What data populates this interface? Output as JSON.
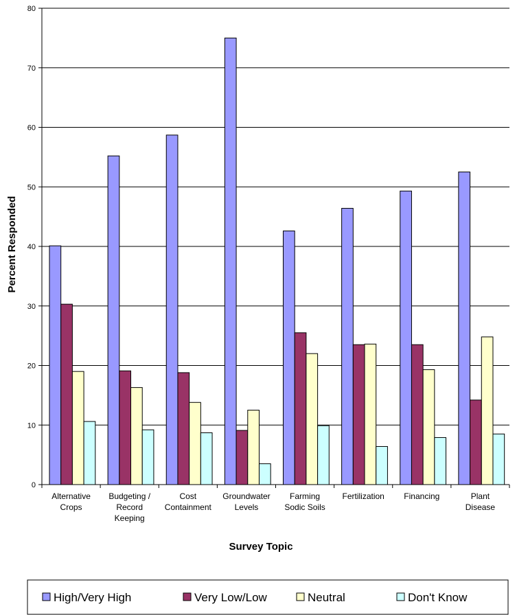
{
  "chart_data": {
    "type": "bar",
    "xlabel": "Survey Topic",
    "ylabel": "Percent Responded",
    "ylim": [
      0,
      80
    ],
    "yticks": [
      0,
      10,
      20,
      30,
      40,
      50,
      60,
      70,
      80
    ],
    "grid": true,
    "legend_position": "bottom",
    "categories": [
      [
        "Alternative",
        "Crops"
      ],
      [
        "Budgeting /",
        "Record",
        "Keeping"
      ],
      [
        "Cost",
        "Containment"
      ],
      [
        "Groundwater",
        "Levels"
      ],
      [
        "Farming",
        "Sodic Soils"
      ],
      [
        "Fertilization"
      ],
      [
        "Financing"
      ],
      [
        "Plant",
        "Disease"
      ]
    ],
    "series": [
      {
        "name": "High/Very High",
        "color": "#9999ff",
        "values": [
          40.1,
          55.2,
          58.7,
          75.0,
          42.6,
          46.4,
          49.3,
          52.5
        ]
      },
      {
        "name": "Very Low/Low",
        "color": "#993366",
        "values": [
          30.3,
          19.1,
          18.8,
          9.1,
          25.5,
          23.5,
          23.5,
          14.2
        ]
      },
      {
        "name": "Neutral",
        "color": "#ffffcc",
        "values": [
          19.0,
          16.3,
          13.8,
          12.5,
          22.0,
          23.6,
          19.3,
          24.8
        ]
      },
      {
        "name": "Don't Know",
        "color": "#ccffff",
        "values": [
          10.6,
          9.2,
          8.7,
          3.5,
          9.9,
          6.4,
          7.9,
          8.5
        ]
      }
    ]
  }
}
